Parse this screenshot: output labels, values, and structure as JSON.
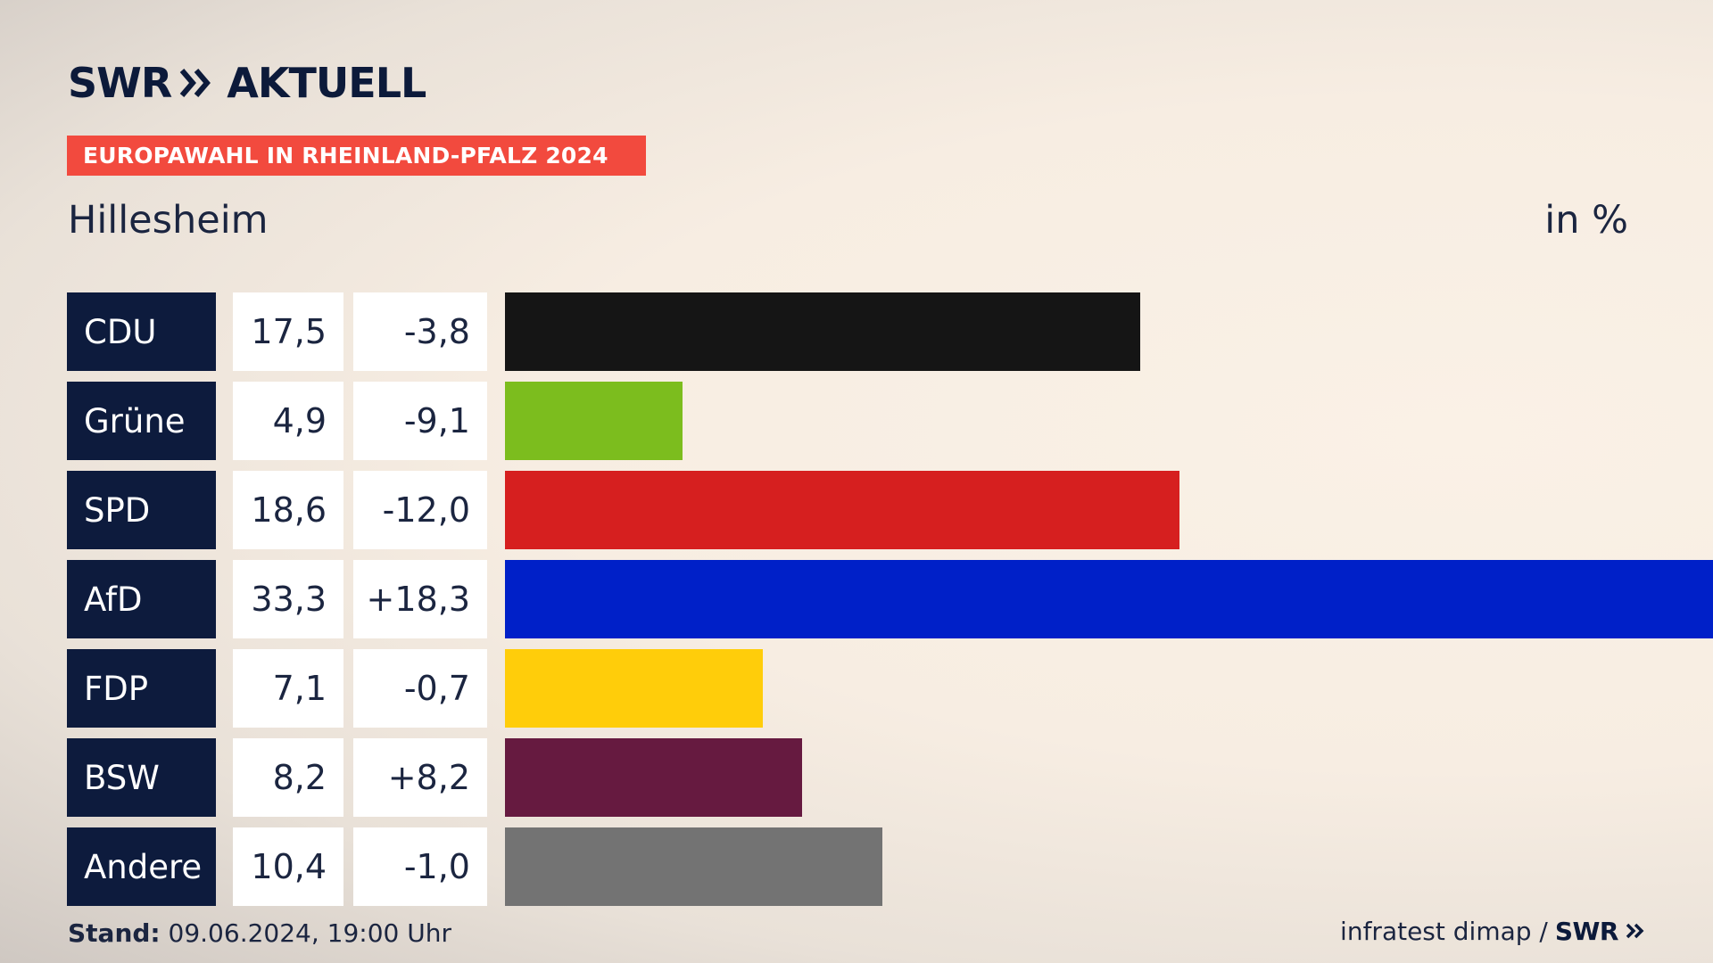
{
  "header": {
    "brand": "SWR",
    "brand_suffix": "AKTUELL",
    "banner": "EUROPAWAHL IN RHEINLAND-PFALZ 2024",
    "place": "Hillesheim",
    "unit": "in %"
  },
  "chart_data": {
    "type": "bar",
    "orientation": "horizontal",
    "categories": [
      "CDU",
      "Grüne",
      "SPD",
      "AfD",
      "FDP",
      "BSW",
      "Andere"
    ],
    "values": [
      17.5,
      4.9,
      18.6,
      33.3,
      7.1,
      8.2,
      10.4
    ],
    "value_labels": [
      "17,5",
      "4,9",
      "18,6",
      "33,3",
      "7,1",
      "8,2",
      "10,4"
    ],
    "changes": [
      -3.8,
      -9.1,
      -12.0,
      18.3,
      -0.7,
      8.2,
      -1.0
    ],
    "change_labels": [
      "-3,8",
      "-9,1",
      "-12,0",
      "+18,3",
      "-0,7",
      "+8,2",
      "-1,0"
    ],
    "colors": [
      "#151515",
      "#7cbd1e",
      "#d61f1f",
      "#0020c8",
      "#ffcd0a",
      "#661a40",
      "#737373"
    ],
    "xlim": [
      0,
      33.3
    ]
  },
  "footer": {
    "stand_label": "Stand:",
    "stand_value": "09.06.2024, 19:00 Uhr",
    "source": "infratest dimap /",
    "source_brand": "SWR"
  }
}
